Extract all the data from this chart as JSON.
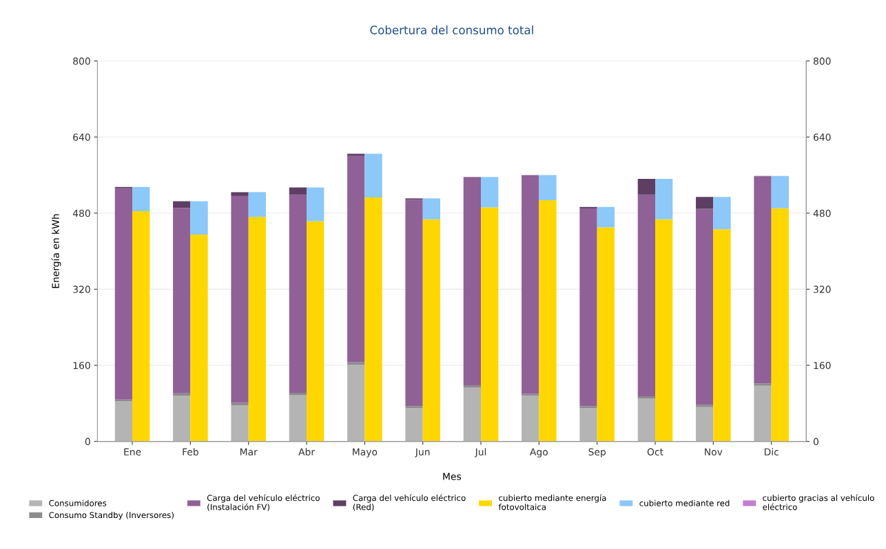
{
  "chart_data": {
    "type": "bar",
    "title": "Cobertura del consumo total",
    "xlabel": "Mes",
    "ylabel": "Energía en kWh",
    "categories": [
      "Ene",
      "Feb",
      "Mar",
      "Abr",
      "Mayo",
      "Jun",
      "Jul",
      "Ago",
      "Sep",
      "Oct",
      "Nov",
      "Dic"
    ],
    "series": [
      {
        "name": "Consumidores",
        "color": "#b4b4b4",
        "base": [
          0,
          0,
          0,
          0,
          0,
          0,
          0,
          0,
          0,
          0,
          0,
          0
        ],
        "values": [
          84,
          96,
          76,
          97,
          161,
          70,
          113,
          96,
          70,
          90,
          72,
          117
        ]
      },
      {
        "name": "Consumo Standby (Inversores)",
        "color": "#8c8c8c",
        "base": [
          84,
          96,
          76,
          97,
          161,
          70,
          113,
          96,
          70,
          90,
          72,
          117
        ],
        "values": [
          4,
          5,
          5,
          5,
          6,
          4,
          4,
          4,
          4,
          5,
          5,
          5
        ]
      },
      {
        "name": "Carga del vehículo eléctrico\n(Instalación FV)",
        "color": "#8f6196",
        "base": [
          88,
          101,
          81,
          102,
          167,
          74,
          117,
          100,
          74,
          95,
          77,
          122
        ],
        "values": [
          444,
          390,
          435,
          417,
          433,
          434,
          439,
          460,
          416,
          424,
          412,
          435
        ]
      },
      {
        "name": "Carga del vehículo eléctrico\n(Red)",
        "color": "#5e3f63",
        "base": [
          532,
          491,
          516,
          519,
          600,
          508,
          null,
          null,
          490,
          519,
          489,
          557
        ],
        "values": [
          3,
          14,
          8,
          15,
          5,
          3,
          null,
          null,
          3,
          33,
          25,
          1
        ]
      },
      {
        "name": "cubierto mediante energía\nfotovoltaica",
        "color": "#ffd700",
        "base": [
          0,
          0,
          0,
          0,
          0,
          0,
          0,
          0,
          0,
          0,
          0,
          0
        ],
        "values": [
          484,
          435,
          472,
          463,
          513,
          467,
          492,
          507,
          450,
          467,
          446,
          490
        ]
      },
      {
        "name": "cubierto mediante red",
        "color": "#8cc8f8",
        "base": [
          484,
          435,
          472,
          463,
          513,
          467,
          492,
          507,
          450,
          467,
          446,
          490
        ],
        "values": [
          51,
          70,
          52,
          71,
          92,
          44,
          64,
          53,
          43,
          85,
          68,
          68
        ]
      },
      {
        "name": "cubierto gracias al vehículo\neléctrico",
        "color": "#c080d0",
        "values": [
          null,
          null,
          null,
          null,
          null,
          null,
          null,
          null,
          null,
          null,
          null,
          null
        ]
      }
    ],
    "ylim": [
      0,
      800
    ],
    "yticks": [
      0,
      160,
      320,
      480,
      640,
      800
    ],
    "y2lim": [
      0,
      800
    ],
    "y2ticks": [
      0,
      160,
      320,
      480,
      640,
      800
    ],
    "grid": "y",
    "legend": "bottom"
  }
}
